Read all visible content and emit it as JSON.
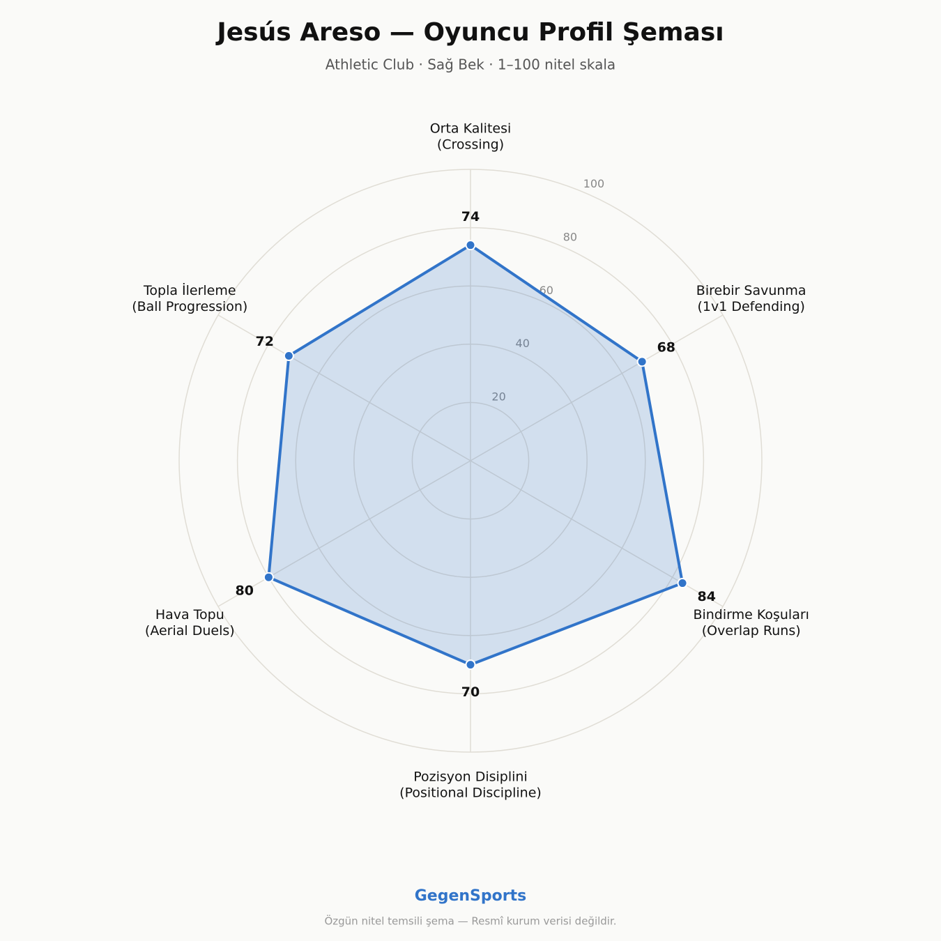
{
  "chart_data": {
    "type": "radar",
    "title": "Jesús Areso — Oyuncu Profil Şeması",
    "subtitle": "Athletic Club · Sağ Bek · 1–100 nitel skala",
    "categories": [
      "Orta Kalitesi\n(Crossing)",
      "Birebir Savunma\n(1v1 Defending)",
      "Bindirme Koşuları\n(Overlap Runs)",
      "Pozisyon Disiplini\n(Positional Discipline)",
      "Hava Topu\n(Aerial Duels)",
      "Topla İlerleme\n(Ball Progression)"
    ],
    "values": [
      74,
      68,
      84,
      70,
      80,
      72
    ],
    "color": "#3174c9",
    "ylim": [
      0,
      100
    ],
    "yticks": [
      20,
      40,
      60,
      80,
      100
    ],
    "grid": true
  },
  "footer": {
    "brand": "GegenSports",
    "note": "Özgün nitel temsili şema — Resmî kurum verisi değildir."
  }
}
